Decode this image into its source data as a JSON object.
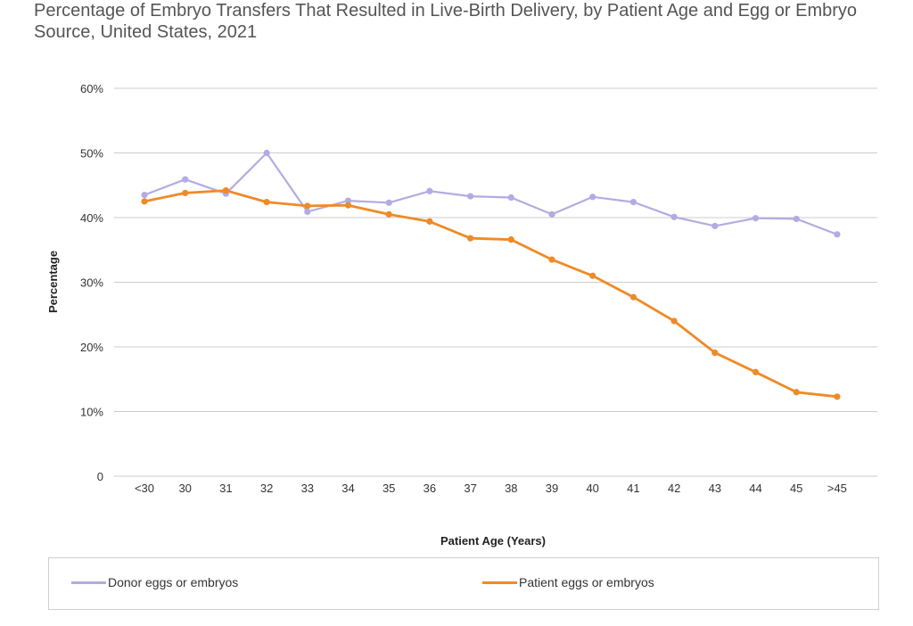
{
  "chart_data": {
    "type": "line",
    "title": "Percentage of Embryo Transfers That Resulted in Live-Birth Delivery, by Patient Age and Egg or Embryo Source, United States, 2021",
    "xlabel": "Patient Age (Years)",
    "ylabel": "Percentage",
    "categories": [
      "<30",
      "30",
      "31",
      "32",
      "33",
      "34",
      "35",
      "36",
      "37",
      "38",
      "39",
      "40",
      "41",
      "42",
      "43",
      "44",
      "45",
      ">45"
    ],
    "ylim": [
      0,
      60
    ],
    "yticks": [
      0,
      10,
      20,
      30,
      40,
      50,
      60
    ],
    "ytick_labels": [
      "0",
      "10%",
      "20%",
      "30%",
      "40%",
      "50%",
      "60%"
    ],
    "grid": true,
    "legend_position": "bottom",
    "series": [
      {
        "name": "Donor eggs or embryos",
        "color": "#b3abe3",
        "values": [
          43.5,
          45.9,
          43.7,
          50.0,
          40.9,
          42.6,
          42.3,
          44.1,
          43.3,
          43.1,
          40.5,
          43.2,
          42.4,
          40.1,
          38.7,
          39.9,
          39.8,
          37.4
        ]
      },
      {
        "name": "Patient eggs or embryos",
        "color": "#ef8a27",
        "values": [
          42.5,
          43.8,
          44.2,
          42.4,
          41.8,
          41.9,
          40.5,
          39.4,
          36.8,
          36.6,
          33.5,
          31.0,
          27.7,
          24.0,
          19.1,
          16.1,
          13.0,
          12.3
        ]
      }
    ]
  }
}
